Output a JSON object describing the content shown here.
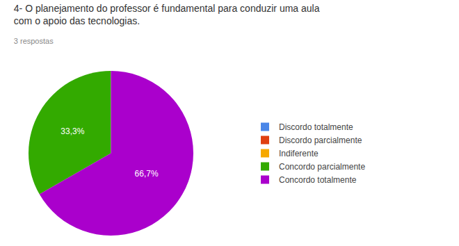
{
  "chart_data": {
    "type": "pie",
    "title": "4- O planejamento do professor é fundamental para conduzir uma aula\ncom o apoio das tecnologias.",
    "subtitle": "3 respostas",
    "categories": [
      "Discordo totalmente",
      "Discordo parcialmente",
      "Indiferente",
      "Concordo parcialmente",
      "Concordo totalmente"
    ],
    "values": [
      0,
      0,
      0,
      33.3,
      66.7
    ],
    "value_labels": [
      null,
      null,
      null,
      "33,3%",
      "66,7%"
    ],
    "colors": [
      "#4a86e8",
      "#e04010",
      "#f6a800",
      "#33aa00",
      "#aa00cc"
    ],
    "data_labels": true,
    "legend": "right"
  }
}
